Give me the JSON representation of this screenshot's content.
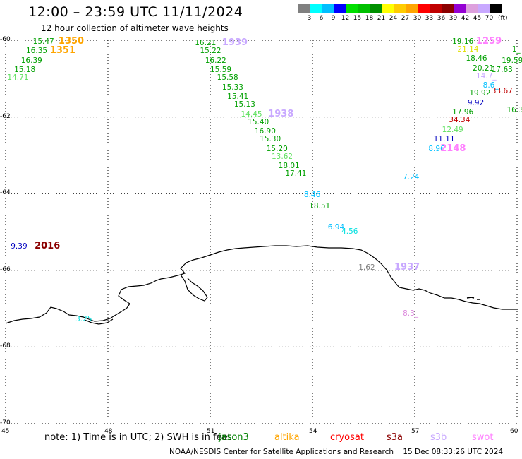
{
  "header": {
    "title": "12:00 – 23:59 UTC 11/11/2024",
    "subtitle": "12 hour collection of altimeter wave heights"
  },
  "colorbar": {
    "colors": [
      "#808080",
      "#00ffff",
      "#00bfff",
      "#0000ff",
      "#00e000",
      "#00c000",
      "#009000",
      "#ffff00",
      "#ffcc00",
      "#ffa500",
      "#ff0000",
      "#c00000",
      "#8b0000",
      "#9400d3",
      "#dda0dd",
      "#c8a8ff",
      "#000000"
    ],
    "labels": [
      "3",
      "6",
      "9",
      "12",
      "15",
      "18",
      "21",
      "24",
      "27",
      "30",
      "33",
      "36",
      "39",
      "42",
      "45",
      "70"
    ],
    "unit": "(ft)"
  },
  "axes": {
    "lat_labels": [
      "-60",
      "-62",
      "-64",
      "-66",
      "-68",
      "-70"
    ],
    "lon_labels": [
      "45",
      "48",
      "51",
      "54",
      "57",
      "60"
    ]
  },
  "observations": [
    {
      "v": "15.47",
      "c": "#00a000",
      "lon": 45.8,
      "lat": -60.05
    },
    {
      "v": "16.35",
      "c": "#00a000",
      "lon": 45.6,
      "lat": -60.3
    },
    {
      "v": "16.39",
      "c": "#00a000",
      "lon": 45.45,
      "lat": -60.55
    },
    {
      "v": "15.18",
      "c": "#00a000",
      "lon": 45.25,
      "lat": -60.8
    },
    {
      "v": "14.71",
      "c": "#60e060",
      "lon": 45.05,
      "lat": -61.0
    },
    {
      "v": "16.21",
      "c": "#00a000",
      "lon": 50.55,
      "lat": -60.1
    },
    {
      "v": "15.22",
      "c": "#00a000",
      "lon": 50.7,
      "lat": -60.3
    },
    {
      "v": "16.22",
      "c": "#00a000",
      "lon": 50.85,
      "lat": -60.55
    },
    {
      "v": "15.59",
      "c": "#00a000",
      "lon": 51.0,
      "lat": -60.8
    },
    {
      "v": "15.58",
      "c": "#00a000",
      "lon": 51.2,
      "lat": -61.0
    },
    {
      "v": "15.33",
      "c": "#00a000",
      "lon": 51.35,
      "lat": -61.25
    },
    {
      "v": "15.41",
      "c": "#00a000",
      "lon": 51.5,
      "lat": -61.5
    },
    {
      "v": "15.13",
      "c": "#00a000",
      "lon": 51.7,
      "lat": -61.7
    },
    {
      "v": "14.45",
      "c": "#60e060",
      "lon": 51.9,
      "lat": -61.95
    },
    {
      "v": "15.40",
      "c": "#00a000",
      "lon": 52.1,
      "lat": -62.15
    },
    {
      "v": "16.90",
      "c": "#00a000",
      "lon": 52.3,
      "lat": -62.4
    },
    {
      "v": "15.30",
      "c": "#00a000",
      "lon": 52.45,
      "lat": -62.6
    },
    {
      "v": "15.20",
      "c": "#00a000",
      "lon": 52.65,
      "lat": -62.85
    },
    {
      "v": "13.62",
      "c": "#60e060",
      "lon": 52.8,
      "lat": -63.05
    },
    {
      "v": "18.01",
      "c": "#00a000",
      "lon": 53.0,
      "lat": -63.3
    },
    {
      "v": "17.41",
      "c": "#00a000",
      "lon": 53.2,
      "lat": -63.5
    },
    {
      "v": "8.46",
      "c": "#00bfff",
      "lon": 53.75,
      "lat": -64.05
    },
    {
      "v": "18.51",
      "c": "#00a000",
      "lon": 53.9,
      "lat": -64.35
    },
    {
      "v": "6.94",
      "c": "#00bfff",
      "lon": 54.45,
      "lat": -64.9
    },
    {
      "v": "4.56",
      "c": "#00e0e0",
      "lon": 54.85,
      "lat": -65.0
    },
    {
      "v": "1.62",
      "c": "#808080",
      "lon": 55.35,
      "lat": -65.95
    },
    {
      "v": "3.25",
      "c": "#00e0e0",
      "lon": 47.05,
      "lat": -67.3
    },
    {
      "v": "9.39",
      "c": "#0000c0",
      "lon": 45.15,
      "lat": -65.4
    },
    {
      "v": "7.24",
      "c": "#00bfff",
      "lon": 56.65,
      "lat": -63.6
    },
    {
      "v": "8.96",
      "c": "#00bfff",
      "lon": 57.4,
      "lat": -62.85
    },
    {
      "v": "11.11",
      "c": "#0000c0",
      "lon": 57.55,
      "lat": -62.6
    },
    {
      "v": "12.49",
      "c": "#60e060",
      "lon": 57.8,
      "lat": -62.35
    },
    {
      "v": "34.34",
      "c": "#c00000",
      "lon": 58.0,
      "lat": -62.1
    },
    {
      "v": "17.96",
      "c": "#00a000",
      "lon": 58.1,
      "lat": -61.9
    },
    {
      "v": "9.92",
      "c": "#0000c0",
      "lon": 58.55,
      "lat": -61.65
    },
    {
      "v": "19.92",
      "c": "#00a000",
      "lon": 58.6,
      "lat": -61.4
    },
    {
      "v": "8.6_",
      "c": "#00bfff",
      "lon": 59.0,
      "lat": -61.2
    },
    {
      "v": "33.67",
      "c": "#c00000",
      "lon": 59.25,
      "lat": -61.35
    },
    {
      "v": "19.16",
      "c": "#00a000",
      "lon": 58.1,
      "lat": -60.05
    },
    {
      "v": "21.14",
      "c": "#e0e000",
      "lon": 58.25,
      "lat": -60.25
    },
    {
      "v": "18.46",
      "c": "#00a000",
      "lon": 58.5,
      "lat": -60.5
    },
    {
      "v": "20.21",
      "c": "#00a000",
      "lon": 58.7,
      "lat": -60.75
    },
    {
      "v": "14.7_",
      "c": "#c8a8ff",
      "lon": 58.8,
      "lat": -60.95
    },
    {
      "v": "17.63",
      "c": "#00a000",
      "lon": 59.25,
      "lat": -60.8
    },
    {
      "v": "19.59",
      "c": "#00a000",
      "lon": 59.55,
      "lat": -60.55
    },
    {
      "v": "16.3",
      "c": "#00a000",
      "lon": 59.7,
      "lat": -61.85
    },
    {
      "v": "1_",
      "c": "#00a000",
      "lon": 59.85,
      "lat": -60.25
    },
    {
      "v": "8.3_",
      "c": "#dd88dd",
      "lon": 56.65,
      "lat": -67.15
    }
  ],
  "passes": [
    {
      "id": "1350",
      "c": "#ffa500",
      "lon": 46.55,
      "lat": -60.05
    },
    {
      "id": "1351",
      "c": "#ffa500",
      "lon": 46.3,
      "lat": -60.3
    },
    {
      "id": "1939",
      "c": "#c8a8ff",
      "lon": 51.35,
      "lat": -60.1
    },
    {
      "id": "1938",
      "c": "#c8a8ff",
      "lon": 52.7,
      "lat": -61.95
    },
    {
      "id": "1259",
      "c": "#ff80ff",
      "lon": 58.8,
      "lat": -60.05
    },
    {
      "id": "2148",
      "c": "#ff80ff",
      "lon": 57.75,
      "lat": -62.85
    },
    {
      "id": "2016",
      "c": "#8b0000",
      "lon": 45.85,
      "lat": -65.4
    },
    {
      "id": "1937",
      "c": "#c8a8ff",
      "lon": 56.4,
      "lat": -65.95
    }
  ],
  "footer": {
    "note": "note:  1) Time is in UTC; 2) SWH is in feet",
    "satellites": [
      {
        "name": "jason3",
        "c": "#008000"
      },
      {
        "name": "altika",
        "c": "#ffa500"
      },
      {
        "name": "cryosat",
        "c": "#ff0000"
      },
      {
        "name": "s3a",
        "c": "#8b0000"
      },
      {
        "name": "s3b",
        "c": "#c8a8ff"
      },
      {
        "name": "swot",
        "c": "#ff80ff"
      }
    ],
    "credit": "NOAA/NESDIS Center for Satellite Applications and Research",
    "timestamp": "15 Dec 08:33:26 UTC 2024"
  }
}
